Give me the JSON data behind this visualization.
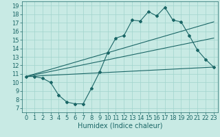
{
  "bg_color": "#c8eae4",
  "grid_color": "#a0d4cc",
  "line_color": "#1a6666",
  "marker_color": "#1a6666",
  "xlabel": "Humidex (Indice chaleur)",
  "xlim": [
    -0.5,
    23.5
  ],
  "ylim": [
    6.5,
    19.5
  ],
  "xticks": [
    0,
    1,
    2,
    3,
    4,
    5,
    6,
    7,
    8,
    9,
    10,
    11,
    12,
    13,
    14,
    15,
    16,
    17,
    18,
    19,
    20,
    21,
    22,
    23
  ],
  "yticks": [
    7,
    8,
    9,
    10,
    11,
    12,
    13,
    14,
    15,
    16,
    17,
    18,
    19
  ],
  "line1_x": [
    0,
    1,
    2,
    3,
    4,
    5,
    6,
    7,
    8,
    9,
    10,
    11,
    12,
    13,
    14,
    15,
    16,
    17,
    18,
    19,
    20,
    21,
    22,
    23
  ],
  "line1_y": [
    10.7,
    10.7,
    10.5,
    10.0,
    8.5,
    7.7,
    7.5,
    7.5,
    9.3,
    11.2,
    13.5,
    15.2,
    15.5,
    17.3,
    17.2,
    18.3,
    17.8,
    18.8,
    17.3,
    17.1,
    15.5,
    13.8,
    12.7,
    11.8
  ],
  "line2_x": [
    0,
    23
  ],
  "line2_y": [
    10.7,
    17.1
  ],
  "line3_x": [
    0,
    23
  ],
  "line3_y": [
    10.7,
    15.2
  ],
  "line4_x": [
    0,
    23
  ],
  "line4_y": [
    10.7,
    11.8
  ],
  "fontsize_label": 7,
  "fontsize_tick": 6
}
